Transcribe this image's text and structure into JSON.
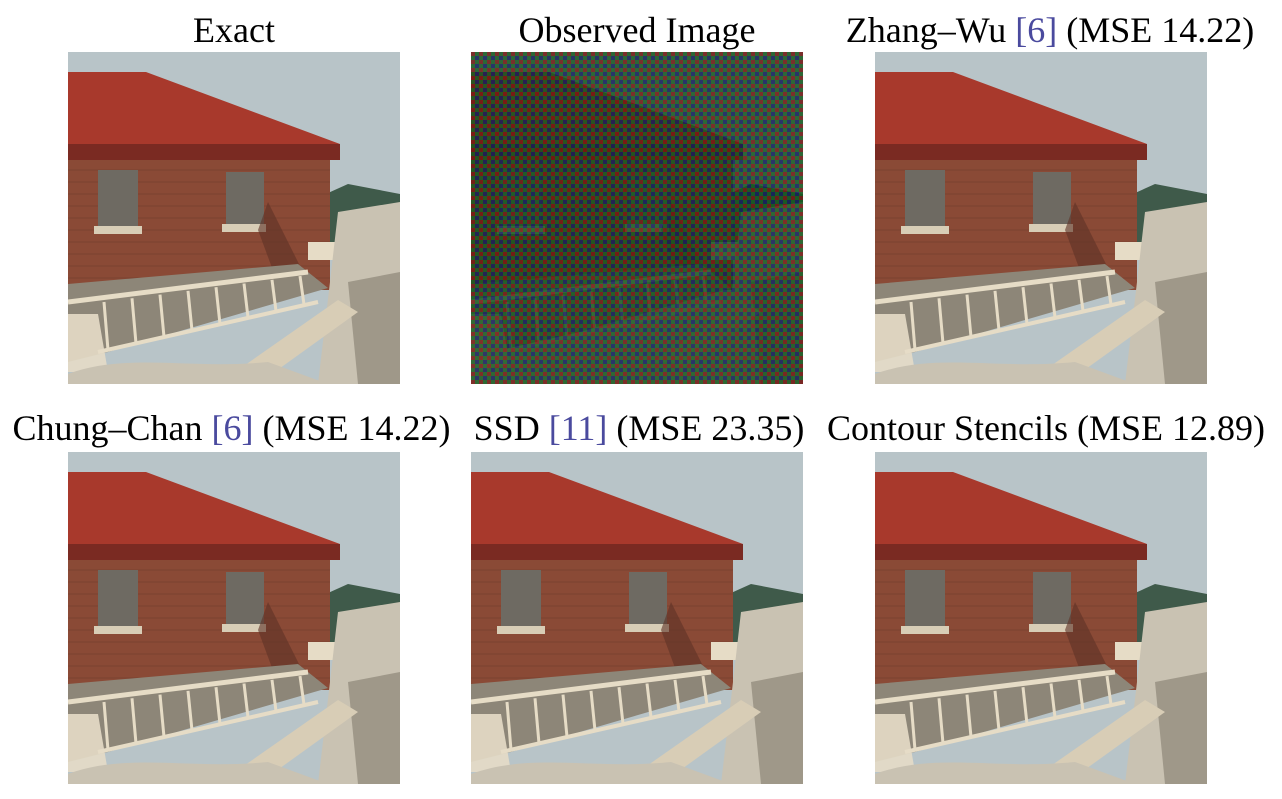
{
  "figure": {
    "panels": [
      {
        "title": "Exact",
        "ref": "",
        "tail": "",
        "kind": "exact"
      },
      {
        "title": "Observed Image",
        "ref": "",
        "tail": "",
        "kind": "observed"
      },
      {
        "title": "Zhang–Wu ",
        "ref": "[6]",
        "tail": " (MSE 14.22)",
        "kind": "restored"
      },
      {
        "title": "Chung–Chan ",
        "ref": "[6]",
        "tail": " (MSE 14.22)",
        "kind": "restored"
      },
      {
        "title": "SSD ",
        "ref": "[11]",
        "tail": " (MSE 23.35)",
        "kind": "restored"
      },
      {
        "title": "Contour Stencils (MSE 12.89)",
        "ref": "",
        "tail": "",
        "kind": "restored"
      }
    ],
    "colors": {
      "sky": "#b8c4c8",
      "roof": "#a8392c",
      "roof_dark": "#7a2a22",
      "brick": "#8a4a36",
      "brick_dark": "#5e3226",
      "window": "#6e6a62",
      "sill": "#d8cdb6",
      "hill": "#3f5a4a",
      "rock": "#c9c2b2",
      "rock_shadow": "#8d8678",
      "rail": "#e6dcc6",
      "reference_link": "#4a4a9e",
      "mosaic_red": "#b0201c",
      "mosaic_green": "#1f8a2e",
      "mosaic_blue": "#1d2a8a"
    }
  }
}
